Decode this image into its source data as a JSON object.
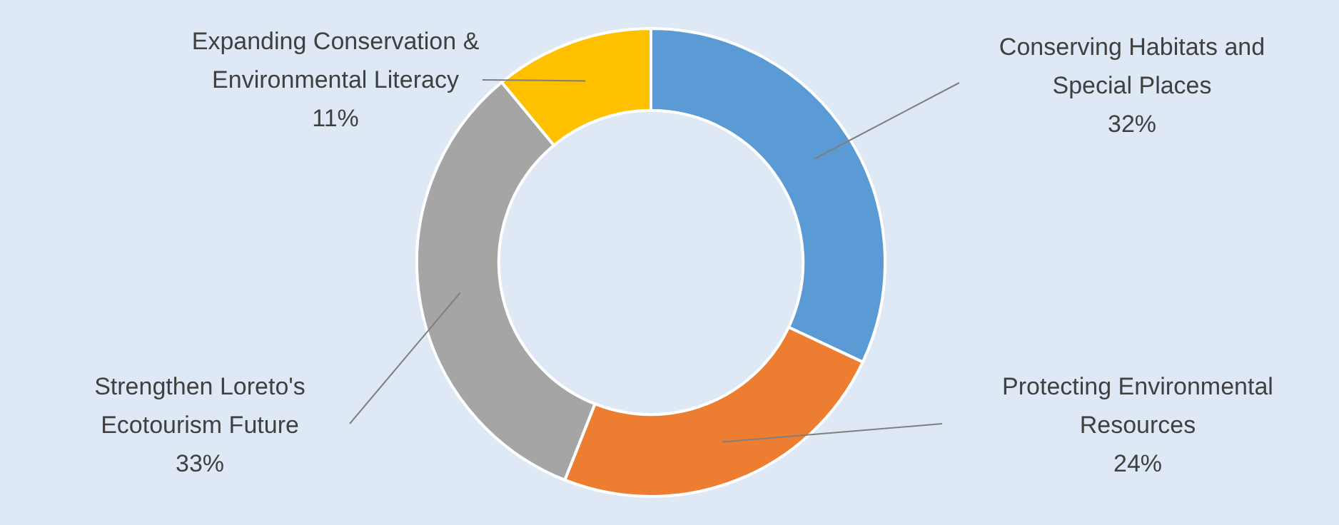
{
  "chart_data": {
    "type": "donut",
    "categories": [
      "Conserving Habitats and Special Places",
      "Protecting Environmental Resources",
      "Strengthen Loreto's Ecotourism Future",
      "Expanding Conservation & Environmental Literacy"
    ],
    "values": [
      32,
      24,
      33,
      11
    ],
    "colors": [
      "#5b9bd5",
      "#ed7d31",
      "#a5a5a5",
      "#ffc000"
    ],
    "value_labels": [
      "32%",
      "24%",
      "33%",
      "11%"
    ],
    "legend": false
  }
}
